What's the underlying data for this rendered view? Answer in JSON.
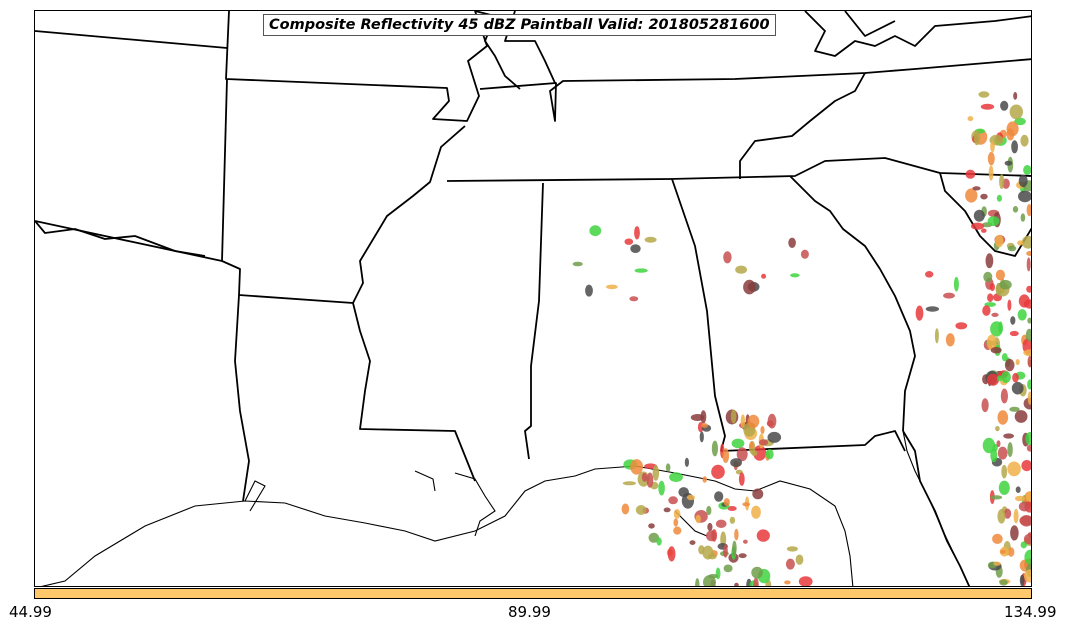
{
  "title": "Composite Reflectivity 45 dBZ Paintball Valid: 201805281600",
  "colorbar": {
    "color": "#ffc86a",
    "ticks": [
      "44.99",
      "89.99",
      "134.99"
    ]
  },
  "member_colors": [
    "#e8393c",
    "#f08a3c",
    "#f0b04a",
    "#3fd43f",
    "#6f9e4a",
    "#b5a84a",
    "#8a3c3c",
    "#4a4a4a",
    "#c85050"
  ],
  "map": {
    "line_color": "#000000",
    "background": "#ffffff"
  }
}
